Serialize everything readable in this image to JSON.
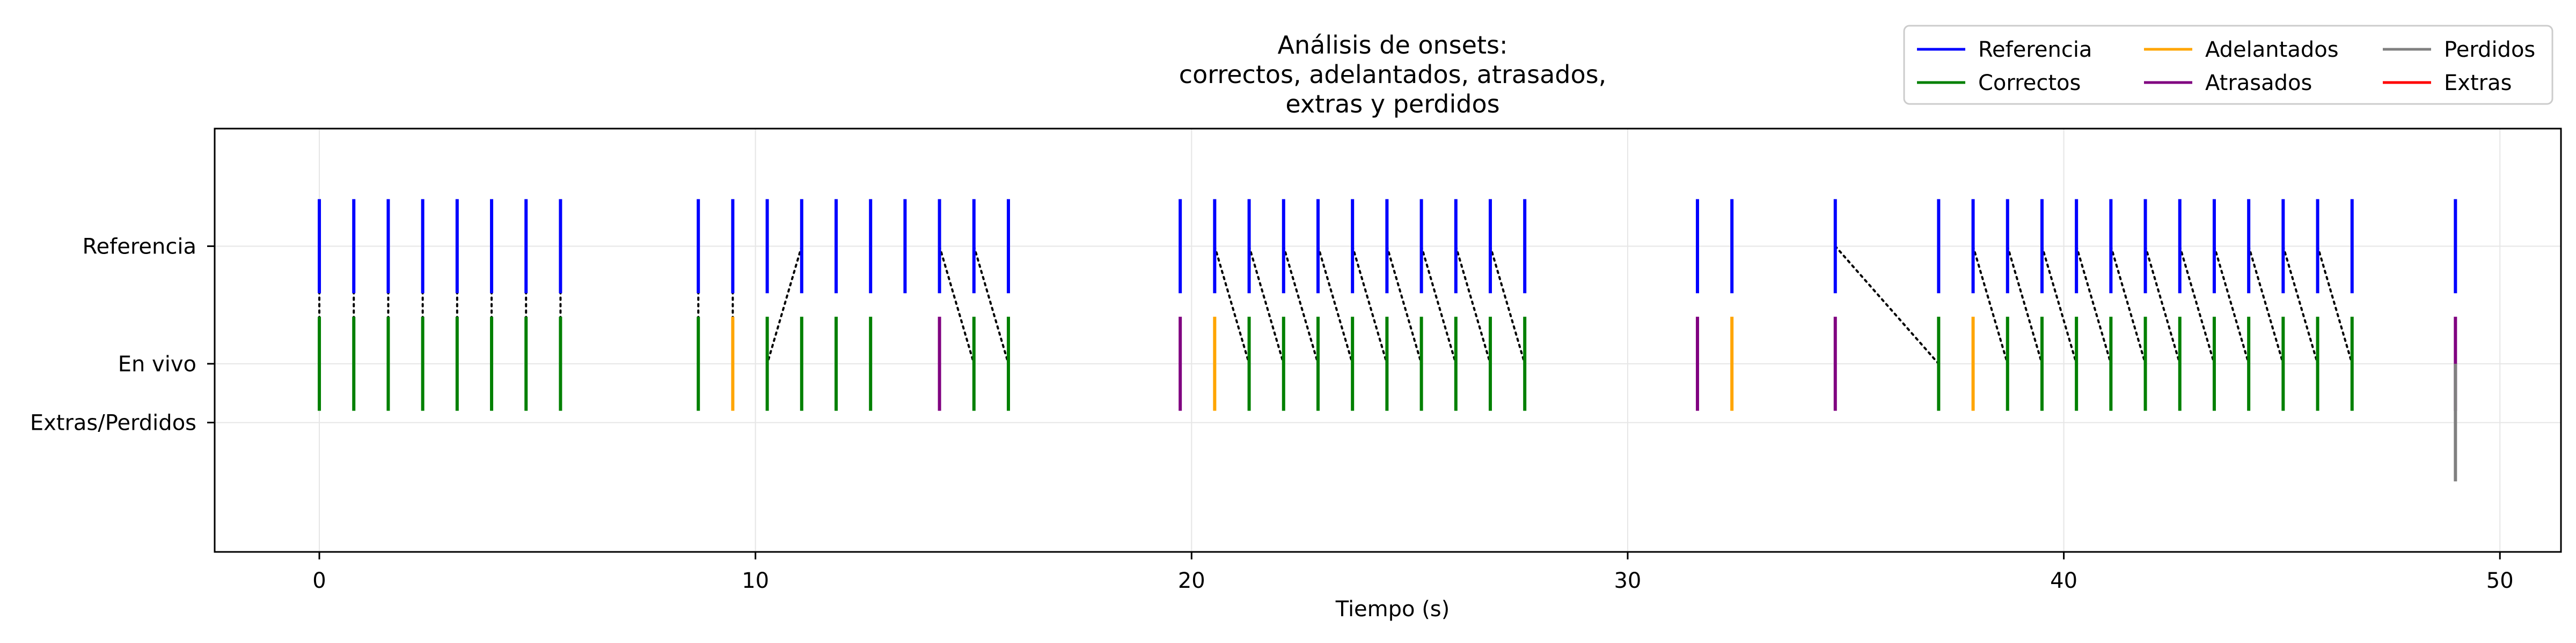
{
  "chart_data": {
    "type": "event_plot",
    "title_lines": [
      "Análisis de onsets:",
      "correctos, adelantados, atrasados,",
      "extras y perdidos"
    ],
    "xlabel": "Tiempo (s)",
    "xlim": [
      -2.4,
      51.4
    ],
    "x_ticks": [
      0,
      10,
      20,
      30,
      40,
      50
    ],
    "grid": true,
    "legend_position": "top-right",
    "rows": [
      {
        "key": "reference",
        "label": "Referencia",
        "y": 2.0
      },
      {
        "key": "live",
        "label": "En vivo",
        "y": 1.0
      },
      {
        "key": "extras_missing",
        "label": "Extras/Perdidos",
        "y": 0.5
      }
    ],
    "ylim": [
      -0.6,
      3.0
    ],
    "legend": [
      {
        "key": "referencia",
        "label": "Referencia",
        "color": "#0000ff"
      },
      {
        "key": "correctos",
        "label": "Correctos",
        "color": "#008000"
      },
      {
        "key": "adelantados",
        "label": "Adelantados",
        "color": "#ffa500"
      },
      {
        "key": "atrasados",
        "label": "Atrasados",
        "color": "#800080"
      },
      {
        "key": "perdidos",
        "label": "Perdidos",
        "color": "#808080"
      },
      {
        "key": "extras",
        "label": "Extras",
        "color": "#ff0000"
      }
    ],
    "reference_onsets": [
      0.0,
      0.79,
      1.58,
      2.37,
      3.16,
      3.95,
      4.74,
      5.53,
      8.69,
      9.48,
      10.27,
      11.06,
      11.85,
      12.64,
      13.43,
      14.22,
      15.01,
      15.8,
      19.74,
      20.53,
      21.32,
      22.11,
      22.9,
      23.69,
      24.48,
      25.27,
      26.06,
      26.85,
      27.64,
      31.6,
      32.39,
      34.76,
      37.13,
      37.92,
      38.71,
      39.5,
      40.29,
      41.08,
      41.87,
      42.66,
      43.45,
      44.24,
      45.03,
      45.82,
      46.61,
      48.98
    ],
    "live_onsets": [
      {
        "t": 0.0,
        "type": "correctos"
      },
      {
        "t": 0.79,
        "type": "correctos"
      },
      {
        "t": 1.58,
        "type": "correctos"
      },
      {
        "t": 2.37,
        "type": "correctos"
      },
      {
        "t": 3.16,
        "type": "correctos"
      },
      {
        "t": 3.95,
        "type": "correctos"
      },
      {
        "t": 4.74,
        "type": "correctos"
      },
      {
        "t": 5.53,
        "type": "correctos"
      },
      {
        "t": 8.69,
        "type": "correctos"
      },
      {
        "t": 9.48,
        "type": "adelantados"
      },
      {
        "t": 10.27,
        "type": "correctos"
      },
      {
        "t": 11.06,
        "type": "correctos"
      },
      {
        "t": 11.85,
        "type": "correctos"
      },
      {
        "t": 12.64,
        "type": "correctos"
      },
      {
        "t": 14.22,
        "type": "atrasados"
      },
      {
        "t": 15.01,
        "type": "correctos"
      },
      {
        "t": 15.8,
        "type": "correctos"
      },
      {
        "t": 19.74,
        "type": "atrasados"
      },
      {
        "t": 20.53,
        "type": "adelantados"
      },
      {
        "t": 21.32,
        "type": "correctos"
      },
      {
        "t": 22.11,
        "type": "correctos"
      },
      {
        "t": 22.9,
        "type": "correctos"
      },
      {
        "t": 23.69,
        "type": "correctos"
      },
      {
        "t": 24.48,
        "type": "correctos"
      },
      {
        "t": 25.27,
        "type": "correctos"
      },
      {
        "t": 26.06,
        "type": "correctos"
      },
      {
        "t": 26.85,
        "type": "correctos"
      },
      {
        "t": 27.64,
        "type": "correctos"
      },
      {
        "t": 31.6,
        "type": "atrasados"
      },
      {
        "t": 32.39,
        "type": "adelantados"
      },
      {
        "t": 34.76,
        "type": "atrasados"
      },
      {
        "t": 37.13,
        "type": "correctos"
      },
      {
        "t": 37.92,
        "type": "adelantados"
      },
      {
        "t": 38.71,
        "type": "correctos"
      },
      {
        "t": 39.5,
        "type": "correctos"
      },
      {
        "t": 40.29,
        "type": "correctos"
      },
      {
        "t": 41.08,
        "type": "correctos"
      },
      {
        "t": 41.87,
        "type": "correctos"
      },
      {
        "t": 42.66,
        "type": "correctos"
      },
      {
        "t": 43.45,
        "type": "correctos"
      },
      {
        "t": 44.24,
        "type": "correctos"
      },
      {
        "t": 45.03,
        "type": "correctos"
      },
      {
        "t": 45.82,
        "type": "correctos"
      },
      {
        "t": 46.61,
        "type": "correctos"
      },
      {
        "t": 48.98,
        "type": "atrasados"
      }
    ],
    "missing_onsets": [
      48.98
    ],
    "extra_onsets": [],
    "matches": [
      {
        "ref": 0.0,
        "live": 0.0
      },
      {
        "ref": 0.79,
        "live": 0.79
      },
      {
        "ref": 1.58,
        "live": 1.58
      },
      {
        "ref": 2.37,
        "live": 2.37
      },
      {
        "ref": 3.16,
        "live": 3.16
      },
      {
        "ref": 3.95,
        "live": 3.95
      },
      {
        "ref": 4.74,
        "live": 4.74
      },
      {
        "ref": 5.53,
        "live": 5.53
      },
      {
        "ref": 8.69,
        "live": 8.69
      },
      {
        "ref": 9.48,
        "live": 9.48
      },
      {
        "ref": 11.06,
        "live": 10.27
      },
      {
        "ref": 14.22,
        "live": 15.01
      },
      {
        "ref": 15.01,
        "live": 15.8
      },
      {
        "ref": 20.53,
        "live": 21.32
      },
      {
        "ref": 21.32,
        "live": 22.11
      },
      {
        "ref": 22.11,
        "live": 22.9
      },
      {
        "ref": 22.9,
        "live": 23.69
      },
      {
        "ref": 23.69,
        "live": 24.48
      },
      {
        "ref": 24.48,
        "live": 25.27
      },
      {
        "ref": 25.27,
        "live": 26.06
      },
      {
        "ref": 26.06,
        "live": 26.85
      },
      {
        "ref": 26.85,
        "live": 27.64
      },
      {
        "ref": 34.76,
        "live": 37.13
      },
      {
        "ref": 37.92,
        "live": 38.71
      },
      {
        "ref": 38.71,
        "live": 39.5
      },
      {
        "ref": 39.5,
        "live": 40.29
      },
      {
        "ref": 40.29,
        "live": 41.08
      },
      {
        "ref": 41.08,
        "live": 41.87
      },
      {
        "ref": 41.87,
        "live": 42.66
      },
      {
        "ref": 42.66,
        "live": 43.45
      },
      {
        "ref": 43.45,
        "live": 44.24
      },
      {
        "ref": 44.24,
        "live": 45.03
      },
      {
        "ref": 45.03,
        "live": 45.82
      },
      {
        "ref": 45.82,
        "live": 46.61
      }
    ]
  }
}
